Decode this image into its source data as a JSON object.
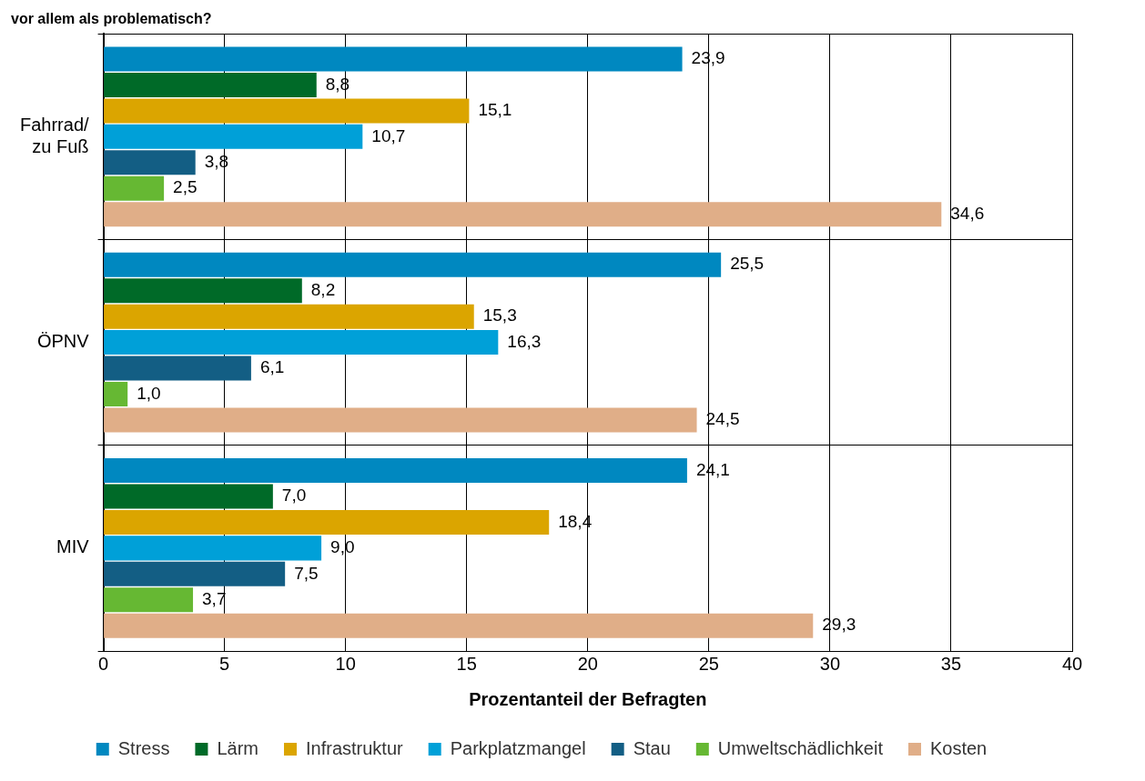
{
  "chart_data": {
    "type": "bar",
    "orientation": "horizontal",
    "title": "vor allem als problematisch?",
    "xlabel": "Prozentanteil der Befragten",
    "categories": [
      "Fahrrad/\nzu Fuß",
      "ÖPNV",
      "MIV"
    ],
    "series": [
      {
        "name": "Stress",
        "color": "#0088c0",
        "values": [
          23.9,
          25.5,
          24.1
        ],
        "value_labels": [
          "23,9",
          "25,5",
          "24,1"
        ]
      },
      {
        "name": "Lärm",
        "color": "#006a28",
        "values": [
          8.8,
          8.2,
          7.0
        ],
        "value_labels": [
          "8,8",
          "8,2",
          "7,0"
        ]
      },
      {
        "name": "Infrastruktur",
        "color": "#dba500",
        "values": [
          15.1,
          15.3,
          18.4
        ],
        "value_labels": [
          "15,1",
          "15,3",
          "18,4"
        ]
      },
      {
        "name": "Parkplatzmangel",
        "color": "#00a0d8",
        "values": [
          10.7,
          16.3,
          9.0
        ],
        "value_labels": [
          "10,7",
          "16,3",
          "9,0"
        ]
      },
      {
        "name": "Stau",
        "color": "#135e84",
        "values": [
          3.8,
          6.1,
          7.5
        ],
        "value_labels": [
          "3,8",
          "6,1",
          "7,5"
        ]
      },
      {
        "name": "Umweltschädlichkeit",
        "color": "#66b833",
        "values": [
          2.5,
          1.0,
          3.7
        ],
        "value_labels": [
          "2,5",
          "1,0",
          "3,7"
        ]
      },
      {
        "name": "Kosten",
        "color": "#e0ae88",
        "values": [
          34.6,
          24.5,
          29.3
        ],
        "value_labels": [
          "34,6",
          "24,5",
          "29,3"
        ]
      }
    ],
    "xlim": [
      0,
      40
    ],
    "xticks": [
      0,
      5,
      10,
      15,
      20,
      25,
      30,
      35,
      40
    ],
    "grid": true,
    "legend": "bottom"
  }
}
